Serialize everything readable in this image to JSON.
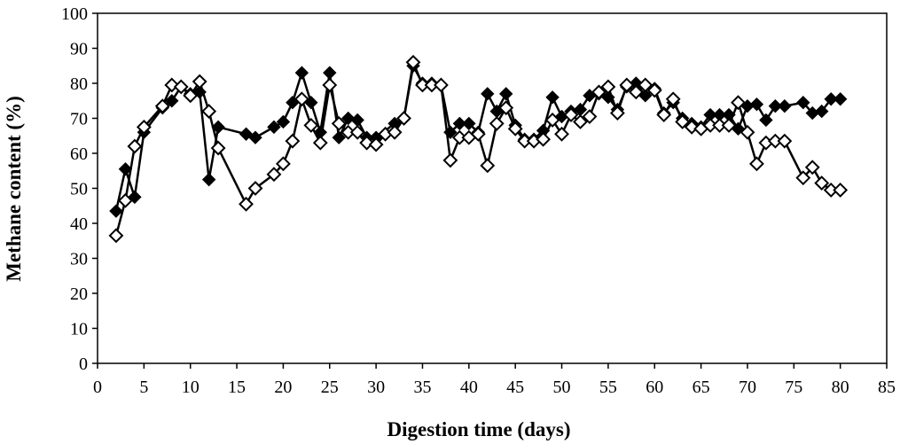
{
  "chart_data": {
    "type": "line",
    "title": "",
    "xlabel": "Digestion time (days)",
    "ylabel": "Methane content (%)",
    "xlim": [
      0,
      85
    ],
    "ylim": [
      0,
      100
    ],
    "xticks": [
      0,
      5,
      10,
      15,
      20,
      25,
      30,
      35,
      40,
      45,
      50,
      55,
      60,
      65,
      70,
      75,
      80,
      85
    ],
    "yticks": [
      0,
      10,
      20,
      30,
      40,
      50,
      60,
      70,
      80,
      90,
      100
    ],
    "grid": false,
    "legend": "none",
    "series": [
      {
        "marker": "filled-diamond",
        "color": "#000000",
        "points": [
          [
            2,
            43.5
          ],
          [
            3,
            55.5
          ],
          [
            4,
            47.5
          ],
          [
            5,
            66
          ],
          [
            7,
            73
          ],
          [
            8,
            75
          ],
          [
            9,
            79
          ],
          [
            10,
            77
          ],
          [
            11,
            77.5
          ],
          [
            12,
            52.5
          ],
          [
            13,
            67.5
          ],
          [
            16,
            65.5
          ],
          [
            17,
            64.5
          ],
          [
            19,
            67.5
          ],
          [
            20,
            69
          ],
          [
            21,
            74.5
          ],
          [
            22,
            83
          ],
          [
            23,
            74.5
          ],
          [
            24,
            66
          ],
          [
            25,
            83
          ],
          [
            26,
            64.5
          ],
          [
            27,
            70
          ],
          [
            28,
            69.5
          ],
          [
            29,
            64.5
          ],
          [
            30,
            64.5
          ],
          [
            32,
            68.5
          ],
          [
            33,
            70
          ],
          [
            34,
            85
          ],
          [
            35,
            80
          ],
          [
            36,
            80
          ],
          [
            37,
            79.5
          ],
          [
            38,
            66
          ],
          [
            39,
            68.5
          ],
          [
            40,
            68.5
          ],
          [
            41,
            66
          ],
          [
            42,
            77
          ],
          [
            43,
            72
          ],
          [
            44,
            77
          ],
          [
            45,
            68
          ],
          [
            46,
            64
          ],
          [
            47,
            64
          ],
          [
            48,
            66.5
          ],
          [
            49,
            76
          ],
          [
            50,
            70.5
          ],
          [
            51,
            72
          ],
          [
            52,
            72.5
          ],
          [
            53,
            76.5
          ],
          [
            54,
            77
          ],
          [
            55,
            76
          ],
          [
            56,
            72.5
          ],
          [
            57,
            79
          ],
          [
            58,
            80
          ],
          [
            59,
            76.5
          ],
          [
            60,
            78.5
          ],
          [
            61,
            71.5
          ],
          [
            62,
            74.5
          ],
          [
            63,
            70
          ],
          [
            64,
            68.5
          ],
          [
            65,
            67.5
          ],
          [
            66,
            71
          ],
          [
            67,
            71
          ],
          [
            68,
            71
          ],
          [
            69,
            67
          ],
          [
            70,
            73.5
          ],
          [
            71,
            74
          ],
          [
            72,
            69.5
          ],
          [
            73,
            73.5
          ],
          [
            74,
            73.5
          ],
          [
            76,
            74.5
          ],
          [
            77,
            71.5
          ],
          [
            78,
            72
          ],
          [
            79,
            75.5
          ],
          [
            80,
            75.5
          ]
        ]
      },
      {
        "marker": "open-diamond",
        "color": "#000000",
        "points": [
          [
            2,
            36.5
          ],
          [
            3,
            46.5
          ],
          [
            4,
            62
          ],
          [
            5,
            67.5
          ],
          [
            7,
            73.5
          ],
          [
            8,
            79.5
          ],
          [
            9,
            79
          ],
          [
            10,
            76.5
          ],
          [
            11,
            80.5
          ],
          [
            12,
            72
          ],
          [
            13,
            61.5
          ],
          [
            16,
            45.5
          ],
          [
            17,
            50
          ],
          [
            19,
            54
          ],
          [
            20,
            57
          ],
          [
            21,
            63.5
          ],
          [
            22,
            75.5
          ],
          [
            23,
            68
          ],
          [
            24,
            63
          ],
          [
            25,
            79.5
          ],
          [
            26,
            68.5
          ],
          [
            27,
            66
          ],
          [
            28,
            66
          ],
          [
            29,
            63
          ],
          [
            30,
            62.5
          ],
          [
            31,
            65.5
          ],
          [
            32,
            66
          ],
          [
            33,
            70
          ],
          [
            34,
            86
          ],
          [
            35,
            79.5
          ],
          [
            36,
            79.5
          ],
          [
            37,
            79.5
          ],
          [
            38,
            58
          ],
          [
            39,
            64.5
          ],
          [
            40,
            64.5
          ],
          [
            41,
            65.5
          ],
          [
            42,
            56.5
          ],
          [
            43,
            68.5
          ],
          [
            44,
            73
          ],
          [
            45,
            67
          ],
          [
            46,
            63.5
          ],
          [
            47,
            63.5
          ],
          [
            48,
            64
          ],
          [
            49,
            69.5
          ],
          [
            50,
            65.5
          ],
          [
            51,
            71
          ],
          [
            52,
            69
          ],
          [
            53,
            70.5
          ],
          [
            54,
            77.5
          ],
          [
            55,
            79
          ],
          [
            56,
            71.5
          ],
          [
            57,
            79.5
          ],
          [
            58,
            77.5
          ],
          [
            59,
            79.5
          ],
          [
            60,
            78
          ],
          [
            61,
            71
          ],
          [
            62,
            75.5
          ],
          [
            63,
            69
          ],
          [
            64,
            67.5
          ],
          [
            65,
            67
          ],
          [
            66,
            68
          ],
          [
            67,
            68
          ],
          [
            68,
            68
          ],
          [
            69,
            74.5
          ],
          [
            70,
            66
          ],
          [
            71,
            57
          ],
          [
            72,
            63
          ],
          [
            73,
            63.5
          ],
          [
            74,
            63.5
          ],
          [
            76,
            53
          ],
          [
            77,
            56
          ],
          [
            78,
            51.5
          ],
          [
            79,
            49.5
          ],
          [
            80,
            49.5
          ]
        ]
      }
    ]
  }
}
